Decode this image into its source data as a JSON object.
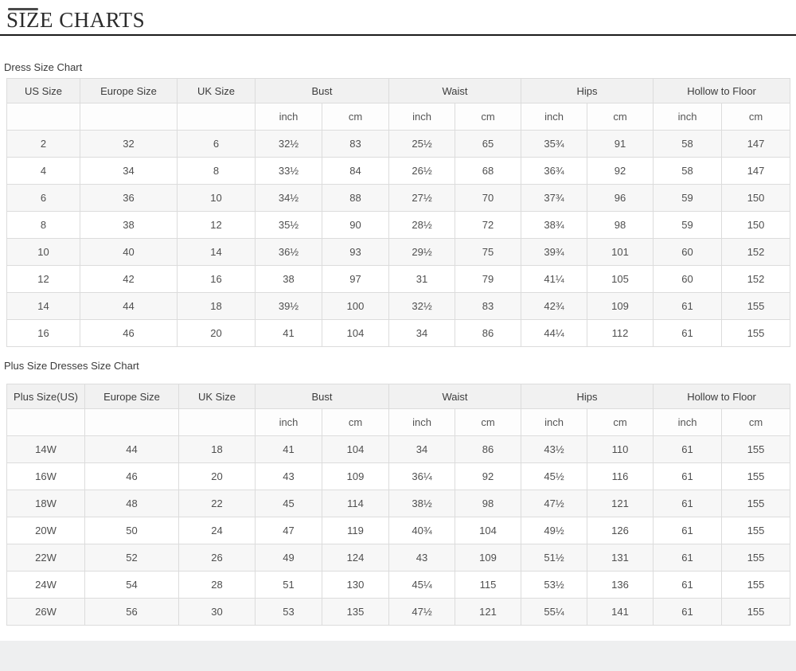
{
  "header": {
    "title": "SIZE CHARTS"
  },
  "chart_data": [
    {
      "type": "table",
      "title": "Dress Size Chart",
      "simple_columns": [
        "US Size",
        "Europe Size",
        "UK Size"
      ],
      "grouped_columns": [
        "Bust",
        "Waist",
        "Hips",
        "Hollow to Floor"
      ],
      "sub_headers": [
        "inch",
        "cm"
      ],
      "rows": [
        [
          "2",
          "32",
          "6",
          "32½",
          "83",
          "25½",
          "65",
          "35¾",
          "91",
          "58",
          "147"
        ],
        [
          "4",
          "34",
          "8",
          "33½",
          "84",
          "26½",
          "68",
          "36¾",
          "92",
          "58",
          "147"
        ],
        [
          "6",
          "36",
          "10",
          "34½",
          "88",
          "27½",
          "70",
          "37¾",
          "96",
          "59",
          "150"
        ],
        [
          "8",
          "38",
          "12",
          "35½",
          "90",
          "28½",
          "72",
          "38¾",
          "98",
          "59",
          "150"
        ],
        [
          "10",
          "40",
          "14",
          "36½",
          "93",
          "29½",
          "75",
          "39¾",
          "101",
          "60",
          "152"
        ],
        [
          "12",
          "42",
          "16",
          "38",
          "97",
          "31",
          "79",
          "41¼",
          "105",
          "60",
          "152"
        ],
        [
          "14",
          "44",
          "18",
          "39½",
          "100",
          "32½",
          "83",
          "42¾",
          "109",
          "61",
          "155"
        ],
        [
          "16",
          "46",
          "20",
          "41",
          "104",
          "34",
          "86",
          "44¼",
          "112",
          "61",
          "155"
        ]
      ]
    },
    {
      "type": "table",
      "title": "Plus Size Dresses Size Chart",
      "simple_columns": [
        "Plus Size(US)",
        "Europe Size",
        "UK Size"
      ],
      "grouped_columns": [
        "Bust",
        "Waist",
        "Hips",
        "Hollow to Floor"
      ],
      "sub_headers": [
        "inch",
        "cm"
      ],
      "rows": [
        [
          "14W",
          "44",
          "18",
          "41",
          "104",
          "34",
          "86",
          "43½",
          "110",
          "61",
          "155"
        ],
        [
          "16W",
          "46",
          "20",
          "43",
          "109",
          "36¼",
          "92",
          "45½",
          "116",
          "61",
          "155"
        ],
        [
          "18W",
          "48",
          "22",
          "45",
          "114",
          "38½",
          "98",
          "47½",
          "121",
          "61",
          "155"
        ],
        [
          "20W",
          "50",
          "24",
          "47",
          "119",
          "40¾",
          "104",
          "49½",
          "126",
          "61",
          "155"
        ],
        [
          "22W",
          "52",
          "26",
          "49",
          "124",
          "43",
          "109",
          "51½",
          "131",
          "61",
          "155"
        ],
        [
          "24W",
          "54",
          "28",
          "51",
          "130",
          "45¼",
          "115",
          "53½",
          "136",
          "61",
          "155"
        ],
        [
          "26W",
          "56",
          "30",
          "53",
          "135",
          "47½",
          "121",
          "55¼",
          "141",
          "61",
          "155"
        ]
      ]
    }
  ],
  "colors": {
    "title_rule": "#1c1c1c",
    "header_bg": "#f1f1f1",
    "stripe_bg": "#f7f7f7",
    "cell_border": "#dcdcdc",
    "footer_bg": "#eeeff0"
  }
}
